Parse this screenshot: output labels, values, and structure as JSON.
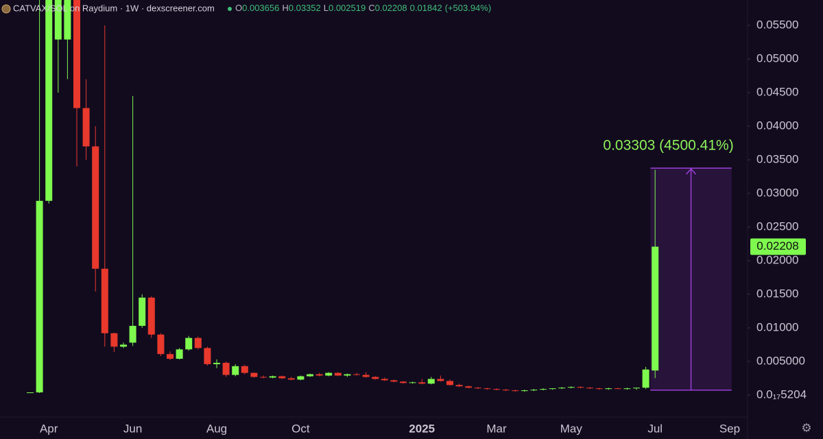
{
  "chart_data": {
    "type": "candlestick",
    "title": "CATVAX/SOL on Raydium · 1W · dexscreener.com",
    "ohlc_labels": [
      "O",
      "H",
      "L",
      "C"
    ],
    "change": 0.01842,
    "change_label": "(+503.94%)",
    "up_color": "#7ef94e",
    "down_color": "#e8392c",
    "categories": [
      null,
      null,
      "Apr",
      null,
      null,
      null,
      null,
      null,
      null,
      null,
      null,
      "Jun",
      null,
      null,
      null,
      null,
      null,
      null,
      null,
      null,
      "Aug",
      null,
      null,
      null,
      null,
      null,
      null,
      null,
      null,
      "Oct",
      null,
      null,
      null,
      null,
      null,
      null,
      null,
      null,
      null,
      null,
      null,
      null,
      "2025",
      null,
      null,
      null,
      null,
      null,
      null,
      null,
      "Mar",
      null,
      null,
      null,
      null,
      null,
      null,
      null,
      "May",
      null,
      null,
      null,
      null,
      null,
      null,
      null,
      null,
      "Jul",
      null,
      null,
      null,
      null,
      null,
      null,
      null,
      "Sep"
    ],
    "open": [
      0.0003,
      0.0004,
      0.0289,
      0.0529,
      0.0529,
      0.064,
      0.0427,
      0.037,
      0.0188,
      0.0092,
      0.0072,
      0.0078,
      0.0103,
      0.0145,
      0.009,
      0.0061,
      0.0054,
      0.0068,
      0.0085,
      0.007,
      0.0046,
      0.0048,
      0.003,
      0.0043,
      0.0033,
      0.0027,
      0.0026,
      0.0028,
      0.0025,
      0.0023,
      0.0028,
      0.0031,
      0.0029,
      0.0033,
      0.0029,
      0.0031,
      0.003,
      0.0027,
      0.0024,
      0.0022,
      0.002,
      0.0018,
      0.0019,
      0.0017,
      0.0024,
      0.0021,
      0.0015,
      0.0013,
      0.0011,
      0.001,
      0.0009,
      0.0008,
      0.0007,
      0.0006,
      0.0007,
      0.0008,
      0.0009,
      0.001,
      0.0011,
      0.0012,
      0.0011,
      0.001,
      0.0009,
      0.001,
      0.0009,
      0.001,
      0.0011,
      0.003656,
      null,
      null,
      null,
      null,
      null,
      null,
      null,
      null
    ],
    "high": [
      0.0004,
      0.065,
      0.07,
      0.07,
      0.07,
      0.07,
      0.047,
      0.04,
      0.055,
      0.0093,
      0.0078,
      0.0445,
      0.015,
      0.0147,
      0.0092,
      0.0065,
      0.007,
      0.0088,
      0.0087,
      0.0072,
      0.0053,
      0.005,
      0.0046,
      0.0045,
      0.0034,
      0.0029,
      0.0029,
      0.0029,
      0.0027,
      0.0029,
      0.0032,
      0.0033,
      0.0034,
      0.0034,
      0.0032,
      0.0033,
      0.0034,
      0.0028,
      0.0026,
      0.0023,
      0.0021,
      0.002,
      0.0024,
      0.0027,
      0.0029,
      0.0023,
      0.0017,
      0.0014,
      0.0012,
      0.0011,
      0.001,
      0.0009,
      0.0008,
      0.0008,
      0.0009,
      0.001,
      0.001,
      0.0012,
      0.0013,
      0.0013,
      0.0012,
      0.0011,
      0.0011,
      0.0011,
      0.0011,
      0.0011,
      0.0042,
      0.03352,
      null,
      null,
      null,
      null,
      null,
      null,
      null,
      null
    ],
    "low": [
      0.0003,
      0.0003,
      0.0285,
      0.045,
      0.047,
      0.034,
      0.035,
      0.0154,
      0.0072,
      0.0064,
      0.007,
      0.0073,
      0.01,
      0.0085,
      0.0058,
      0.0052,
      0.0053,
      0.0066,
      0.0068,
      0.0044,
      0.004,
      0.0027,
      0.0028,
      0.0031,
      0.0026,
      0.0025,
      0.0025,
      0.0024,
      0.0022,
      0.0022,
      0.0027,
      0.0028,
      0.0028,
      0.0028,
      0.0027,
      0.0029,
      0.0026,
      0.0023,
      0.0021,
      0.0019,
      0.0017,
      0.0017,
      0.0016,
      0.0016,
      0.002,
      0.0014,
      0.0012,
      0.001,
      0.0009,
      0.0008,
      0.0007,
      0.0006,
      0.0005,
      0.0005,
      0.0006,
      0.0007,
      0.0008,
      0.0009,
      0.001,
      0.001,
      0.0009,
      0.0008,
      0.0008,
      0.0009,
      0.0008,
      0.0008,
      0.0009,
      0.002519,
      null,
      null,
      null,
      null,
      null,
      null,
      null,
      null
    ],
    "close": [
      0.0004,
      0.0289,
      0.062,
      0.064,
      0.064,
      0.0427,
      0.037,
      0.0188,
      0.0092,
      0.0072,
      0.0075,
      0.0103,
      0.0145,
      0.009,
      0.0061,
      0.0054,
      0.0068,
      0.0085,
      0.007,
      0.0046,
      0.0048,
      0.003,
      0.0043,
      0.0033,
      0.0027,
      0.0026,
      0.0028,
      0.0025,
      0.0023,
      0.0028,
      0.0031,
      0.0029,
      0.0033,
      0.0029,
      0.0031,
      0.003,
      0.0027,
      0.0024,
      0.0022,
      0.002,
      0.0018,
      0.0019,
      0.0017,
      0.0024,
      0.0021,
      0.0015,
      0.0013,
      0.0011,
      0.001,
      0.0009,
      0.0008,
      0.0007,
      0.0006,
      0.0007,
      0.0008,
      0.0009,
      0.001,
      0.0011,
      0.0012,
      0.0011,
      0.001,
      0.0009,
      0.001,
      0.0009,
      0.001,
      0.0011,
      0.0038,
      0.02208,
      null,
      null,
      null,
      null,
      null,
      null,
      null,
      null
    ],
    "ylim": [
      -0.00327,
      0.05878
    ],
    "yticks": [
      {
        "value": 5.204e-18,
        "label": "0.0₁₇5204"
      },
      {
        "value": 0.005,
        "label": "0.005000"
      },
      {
        "value": 0.01,
        "label": "0.01000"
      },
      {
        "value": 0.015,
        "label": "0.01500"
      },
      {
        "value": 0.02,
        "label": "0.02000"
      },
      {
        "value": 0.025,
        "label": "0.02500"
      },
      {
        "value": 0.03,
        "label": "0.03000"
      },
      {
        "value": 0.035,
        "label": "0.03500"
      },
      {
        "value": 0.04,
        "label": "0.04000"
      },
      {
        "value": 0.045,
        "label": "0.04500"
      },
      {
        "value": 0.05,
        "label": "0.05000"
      },
      {
        "value": 0.055,
        "label": "0.05500"
      }
    ],
    "measure": {
      "label": "0.03303 (4500.41%)",
      "from": 0.000734,
      "to": 0.033764,
      "color": "#9b3fd6"
    }
  }
}
